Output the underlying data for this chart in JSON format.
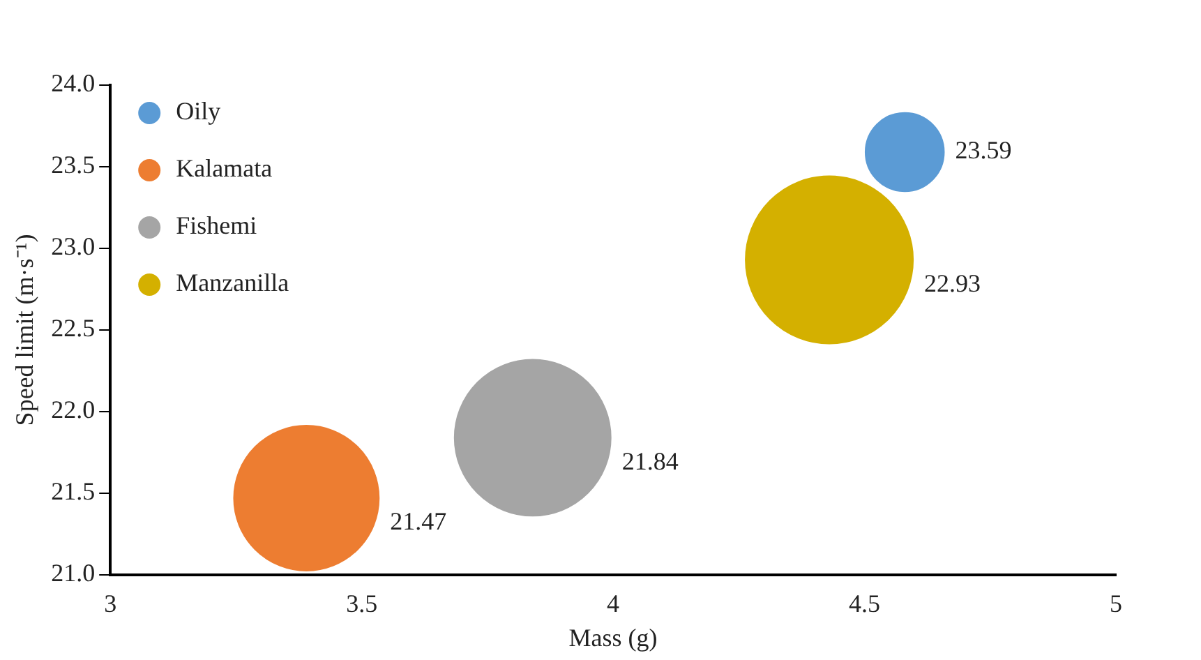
{
  "chart_data": {
    "type": "bubble",
    "xlabel": "Mass (g)",
    "ylabel": "Speed limit (m·s⁻¹)",
    "series": [
      {
        "name": "Oily",
        "color": "#5b9bd5",
        "x": [
          4.58
        ],
        "values": [
          23.59
        ],
        "sizes": [
          0.22
        ]
      },
      {
        "name": "Kalamata",
        "color": "#ed7d31",
        "x": [
          3.39
        ],
        "values": [
          21.47
        ],
        "sizes": [
          0.75
        ]
      },
      {
        "name": "Fishemi",
        "color": "#a5a5a5",
        "x": [
          3.84
        ],
        "values": [
          21.84
        ],
        "sizes": [
          0.87
        ]
      },
      {
        "name": "Manzanilla",
        "color": "#d4b000",
        "x": [
          4.43
        ],
        "values": [
          22.93
        ],
        "sizes": [
          1
        ]
      }
    ],
    "xlim": [
      3,
      5
    ],
    "xticks": [
      3,
      3.5,
      4,
      4.5,
      5
    ],
    "ylim": [
      21,
      24
    ],
    "yticks": [
      {
        "value": 21,
        "label": "21.0"
      },
      {
        "value": 21.5,
        "label": "21.5"
      },
      {
        "value": 22,
        "label": "22.0"
      },
      {
        "value": 22.5,
        "label": "22.5"
      },
      {
        "value": 23,
        "label": "23.0"
      },
      {
        "value": 23.5,
        "label": "23.5"
      },
      {
        "value": 24,
        "label": "24.0"
      }
    ],
    "grid": false,
    "legend": "top left",
    "data_labels": true
  }
}
